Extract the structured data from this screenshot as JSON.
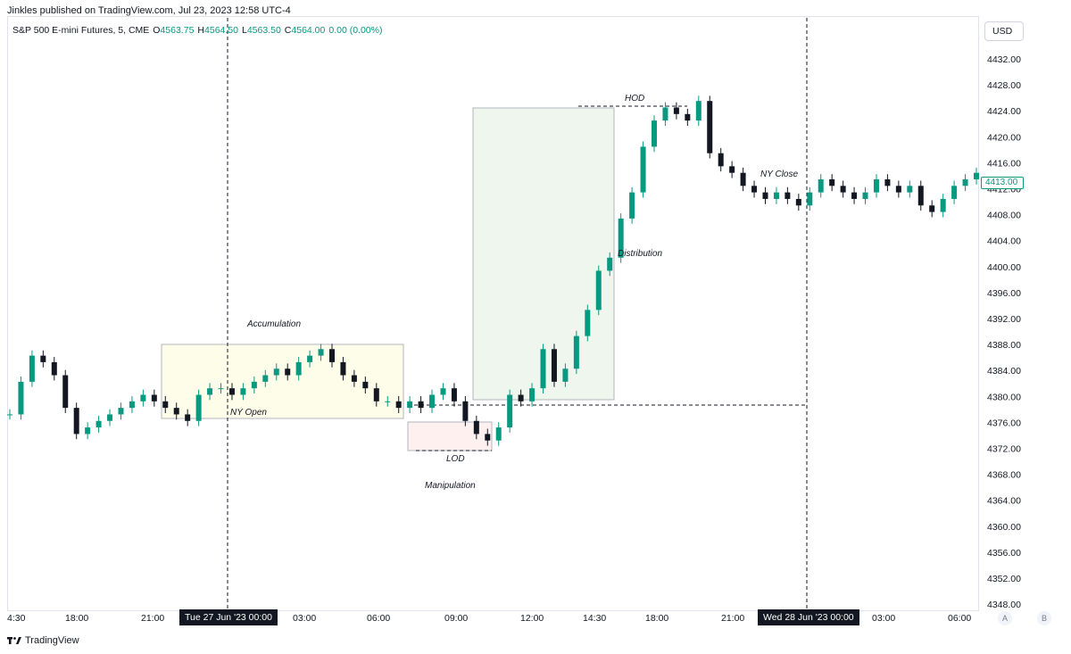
{
  "header": {
    "published": "Jinkles published on TradingView.com, Jul 23, 2023 12:58 UTC-4"
  },
  "legend": {
    "symbol": "S&P 500 E-mini Futures, 5, CME",
    "open_label": "O",
    "open": "4563.75",
    "high_label": "H",
    "high": "4564.50",
    "low_label": "L",
    "low": "4563.50",
    "close_label": "C",
    "close": "4564.00",
    "change": "0.00 (0.00%)"
  },
  "currency_button": "USD",
  "current_price": "4413.00",
  "price_axis": [
    "4432.00",
    "4428.00",
    "4424.00",
    "4420.00",
    "4416.00",
    "4412.00",
    "4408.00",
    "4404.00",
    "4400.00",
    "4396.00",
    "4392.00",
    "4388.00",
    "4384.00",
    "4380.00",
    "4376.00",
    "4372.00",
    "4368.00",
    "4364.00",
    "4360.00",
    "4356.00",
    "4352.00",
    "4348.00"
  ],
  "time_axis": [
    "4:30",
    "18:00",
    "21:00",
    "03:00",
    "06:00",
    "09:00",
    "12:00",
    "14:30",
    "18:00",
    "21:00",
    "03:00",
    "06:00"
  ],
  "date_flags": [
    "Tue 27 Jun '23   00:00",
    "Wed 28 Jun '23   00:00"
  ],
  "annotations": {
    "accumulation": "Accumulation",
    "ny_open": "NY Open",
    "lod": "LOD",
    "manipulation": "Manipulation",
    "hod": "HOD",
    "distribution": "Distribution",
    "ny_close": "NY Close"
  },
  "axis_buttons": [
    "A",
    "B"
  ],
  "footer": {
    "brand": "TradingView"
  },
  "colors": {
    "up": "#089981",
    "down": "#131722",
    "accumulation_box": "#fefde9",
    "distribution_box": "#eef6ee",
    "manipulation_box": "#fdf0ef"
  },
  "chart_data": {
    "type": "candlestick",
    "series": [
      {
        "name": "",
        "values": [
          4376,
          4381,
          4385,
          4384,
          4382,
          4377,
          4373,
          4374,
          4375,
          4376,
          4377,
          4378,
          4379,
          4378,
          4377,
          4376,
          4375,
          4379,
          4380,
          4380,
          4379,
          4380,
          4381,
          4382,
          4383,
          4382,
          4384,
          4385,
          4386,
          4384,
          4382,
          4381,
          4380,
          4378,
          4378,
          4377,
          4378,
          4377,
          4379,
          4380,
          4378,
          4375,
          4373,
          4372,
          4374,
          4379,
          4378,
          4380,
          4386,
          4381,
          4383,
          4388,
          4392,
          4398,
          4400,
          4406,
          4410,
          4417,
          4421,
          4423,
          4422,
          4421,
          4424,
          4416,
          4414,
          4413,
          4411,
          4410,
          4409,
          4410,
          4409,
          4408,
          4410,
          4412,
          4411,
          4410,
          4409,
          4410,
          4412,
          4411,
          4410,
          4411,
          4408,
          4407,
          4409,
          4411,
          4412,
          4413
        ]
      }
    ],
    "ylim": [
      4346,
      4434
    ]
  }
}
